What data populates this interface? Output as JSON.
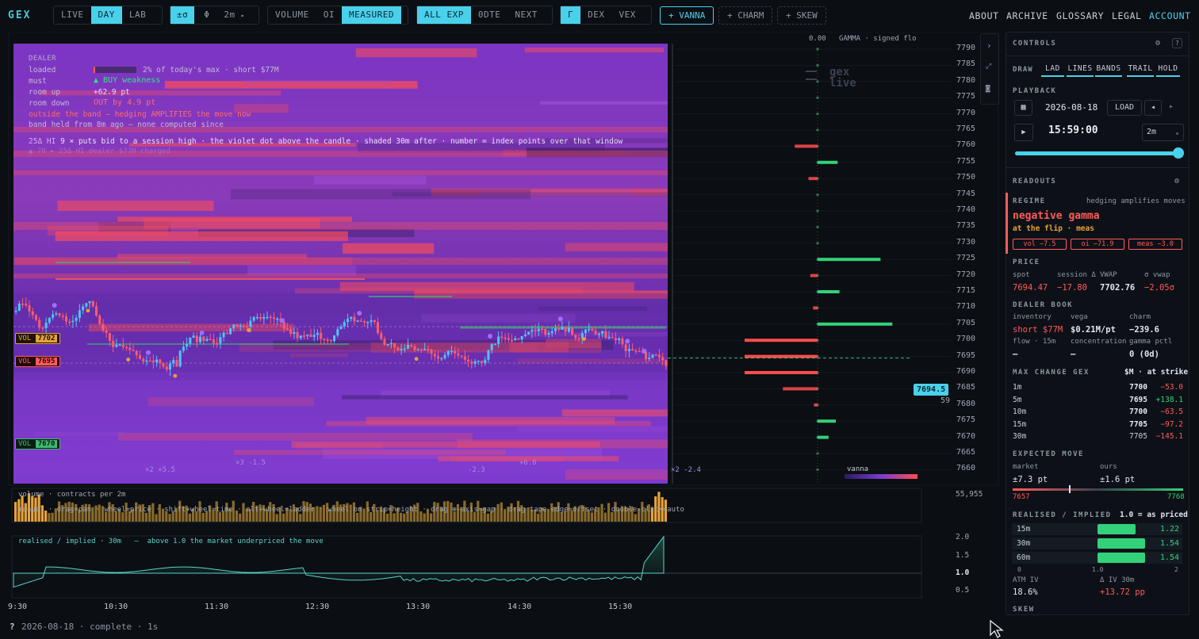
{
  "topbar": {
    "logo": "GEX",
    "mode_group": [
      "LIVE",
      "DAY",
      "LAB"
    ],
    "mode_active": 1,
    "sigma": "±σ",
    "phi": "Φ",
    "interval": "2m",
    "interval_arrow": "▸",
    "metric_group": [
      "VOLUME",
      "OI",
      "MEASURED"
    ],
    "metric_active": 2,
    "exp_group": [
      "ALL EXP",
      "0DTE",
      "NEXT"
    ],
    "exp_active": 0,
    "greek_group": [
      "Γ",
      "DEX",
      "VEX"
    ],
    "greek_active": 0,
    "overlays": [
      "+ VANNA",
      "+ CHARM",
      "+ SKEW"
    ],
    "nav": [
      "ABOUT",
      "ARCHIVE",
      "GLOSSARY",
      "LEGAL",
      "ACCOUNT"
    ]
  },
  "overlay": {
    "header": "DEALER",
    "rows": [
      {
        "k": "loaded",
        "v": "2% of today's max · short $77M"
      },
      {
        "k": "must",
        "v": "▲ BUY weakness"
      },
      {
        "k": "room up",
        "v": "+62.9 pt"
      },
      {
        "k": "room down",
        "v": "OUT by 4.9 pt"
      }
    ],
    "warn": "outside the band — hedging AMPLIFIES the move now",
    "band_note": "band held from 8m ago — none computed since",
    "note_prefix": "25Δ HI",
    "note": "9 × puts bid to a session high · the violet dot above the candle · shaded 30m after · number = index points over that window",
    "faint": "▲ 70 ▸ 25Δ HI dealer $77M charged",
    "help": "manual · drag=pan · wheel=price · shift+wheel=time · alt+wheel=ladder · wheel on strip=height · drag ⊕-axis=gap · drag tape edge=offset · double-click=auto",
    "markers": [
      "×2 +5.5",
      "×3 -1.5",
      "-2.3",
      "+6.6",
      "×2 -2.4"
    ]
  },
  "levels": [
    {
      "tag": "VOL",
      "price": "7702",
      "kind": "amber"
    },
    {
      "tag": "VOL",
      "price": "7695",
      "kind": "red"
    },
    {
      "tag": "VOL",
      "price": "7670",
      "kind": "green"
    }
  ],
  "ladder_header": {
    "value": "0.00",
    "label": "GAMMA · signed flo"
  },
  "watermark": [
    "gex",
    "live"
  ],
  "price_axis": [
    "7790",
    "7785",
    "7780",
    "7775",
    "7770",
    "7765",
    "7760",
    "7755",
    "7750",
    "7745",
    "7740",
    "7735",
    "7730",
    "7725",
    "7720",
    "7715",
    "7710",
    "7705",
    "7700",
    "7695",
    "7690",
    "7685",
    "7680",
    "7675",
    "7670",
    "7665",
    "7660"
  ],
  "spot_tag": "7694.5",
  "spot_sub": "59",
  "vanna_label": "vanna",
  "volume": {
    "label": "volume · contracts per 2m",
    "max": "55,955"
  },
  "ratio": {
    "label": "realised / implied · 30m",
    "sep": "—",
    "note": "above 1.0 the market underpriced the move",
    "ticks": [
      "2.0",
      "1.5",
      "1.0",
      "0.5"
    ]
  },
  "time_axis": [
    "9:30",
    "10:30",
    "11:30",
    "12:30",
    "13:30",
    "14:30",
    "15:30"
  ],
  "footer": {
    "help": "?",
    "date": "2026-08-18",
    "status": "complete",
    "elapsed": "1s"
  },
  "chart_data": {
    "type": "heatmap",
    "price_range": [
      7660,
      7790
    ],
    "spot": 7694.5,
    "gamma_ladder": [
      {
        "strike": 7760,
        "side": "neg",
        "size": 0.25
      },
      {
        "strike": 7755,
        "side": "pos",
        "size": 0.22
      },
      {
        "strike": 7750,
        "side": "neg",
        "size": 0.1
      },
      {
        "strike": 7725,
        "side": "pos",
        "size": 0.69
      },
      {
        "strike": 7720,
        "side": "neg",
        "size": 0.08
      },
      {
        "strike": 7715,
        "side": "pos",
        "size": 0.24
      },
      {
        "strike": 7710,
        "side": "neg",
        "size": 0.05
      },
      {
        "strike": 7705,
        "side": "pos",
        "size": 0.82
      },
      {
        "strike": 7700,
        "side": "neg",
        "size": 0.8
      },
      {
        "strike": 7695,
        "side": "neg",
        "size": 0.8
      },
      {
        "strike": 7690,
        "side": "neg",
        "size": 0.8
      },
      {
        "strike": 7685,
        "side": "neg",
        "size": 0.38
      },
      {
        "strike": 7680,
        "side": "neg",
        "size": 0.04
      },
      {
        "strike": 7675,
        "side": "pos",
        "size": 0.2
      },
      {
        "strike": 7670,
        "side": "pos",
        "size": 0.12
      }
    ]
  },
  "panel": {
    "controls_title": "CONTROLS",
    "draw_label": "DRAW",
    "draw_btns": [
      "LAD",
      "LINES",
      "BANDS",
      "TRAIL",
      "HOLD"
    ],
    "playback_title": "PLAYBACK",
    "date": "2026-08-18",
    "load": "LOAD",
    "prev": "◂",
    "next": "▸",
    "play": "▶",
    "time": "15:59:00",
    "step": "2m",
    "readouts_title": "READOUTS",
    "regime_label": "REGIME",
    "regime_note": "hedging amplifies moves",
    "regime_value": "negative gamma",
    "regime_sub": "at the flip · meas",
    "chips": [
      "vol −7.5",
      "oi −71.9",
      "meas −3.0"
    ],
    "price_title": "PRICE",
    "price_cols": [
      "spot",
      "session Δ",
      "VWAP",
      "σ vwap"
    ],
    "price_vals": [
      "7694.47",
      "−17.80",
      "7702.76",
      "−2.05σ"
    ],
    "dealer_title": "DEALER BOOK",
    "dealer_cols": [
      "inventory",
      "vega",
      "charm"
    ],
    "dealer_vals": [
      "short $77M",
      "$0.21M/pt",
      "−239.6"
    ],
    "dealer_cols2": [
      "flow · 15m",
      "concentration",
      "gamma pctl"
    ],
    "dealer_vals2": [
      "—",
      "—",
      "0 (0d)"
    ],
    "maxchange_title": "MAX CHANGE GEX",
    "maxchange_unit": "$M · at strike",
    "maxchange": [
      {
        "w": "1m",
        "strike": "7700",
        "v": "−53.0"
      },
      {
        "w": "5m",
        "strike": "7695",
        "v": "+138.1"
      },
      {
        "w": "10m",
        "strike": "7700",
        "v": "−63.5"
      },
      {
        "w": "15m",
        "strike": "7705",
        "v": "−97.2"
      },
      {
        "w": "30m",
        "strike": "7705",
        "v": "−145.1"
      }
    ],
    "expmove_title": "EXPECTED MOVE",
    "exp_cols": [
      "market",
      "ours"
    ],
    "exp_vals": [
      "±7.3 pt",
      "±1.6 pt"
    ],
    "exp_low": "7657",
    "exp_high": "7768",
    "ri_title": "REALISED / IMPLIED",
    "ri_note": "1.0 = as priced",
    "ri": [
      {
        "w": "15m",
        "v": "1.22",
        "frac": 0.61
      },
      {
        "w": "30m",
        "v": "1.54",
        "frac": 0.77
      },
      {
        "w": "60m",
        "v": "1.54",
        "frac": 0.77
      }
    ],
    "ri_scale": [
      "0",
      "1.0",
      "2"
    ],
    "atm_cols": [
      "ATM IV",
      "Δ IV 30m"
    ],
    "atm_vals": [
      "18.6%",
      "+13.72 pp"
    ],
    "skew_title": "SKEW"
  }
}
